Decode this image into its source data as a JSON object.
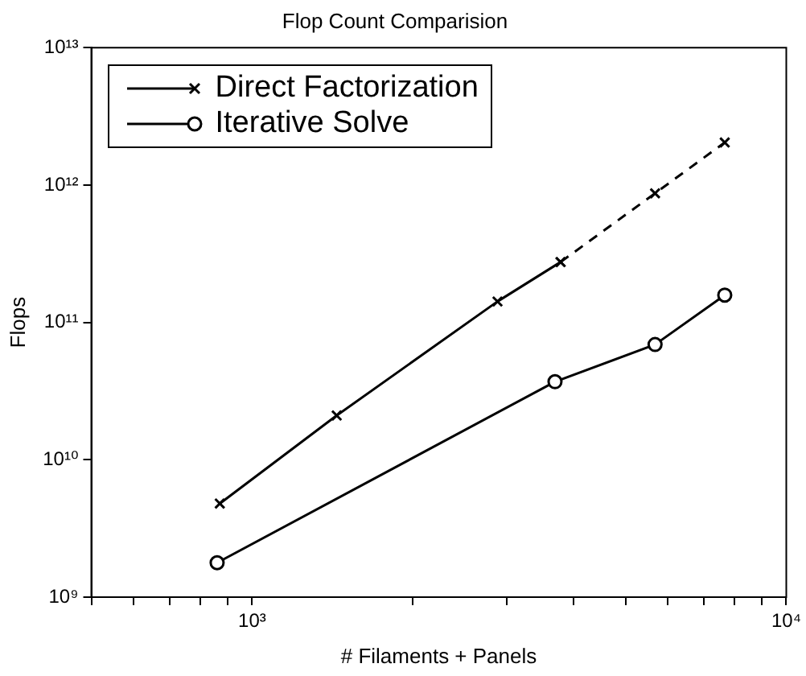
{
  "chart_data": {
    "type": "line",
    "title": "Flop Count Comparision",
    "xlabel": "# Filaments + Panels",
    "ylabel": "Flops",
    "log": "xy",
    "grid": false,
    "legend": "top left",
    "xlim": [
      500,
      10000
    ],
    "xticks": [
      {
        "value": 500,
        "label": null
      },
      {
        "value": 600,
        "label": null
      },
      {
        "value": 700,
        "label": null
      },
      {
        "value": 800,
        "label": null
      },
      {
        "value": 900,
        "label": null
      },
      {
        "value": 1000,
        "label": "10³"
      },
      {
        "value": 2000,
        "label": null
      },
      {
        "value": 3000,
        "label": null
      },
      {
        "value": 4000,
        "label": null
      },
      {
        "value": 5000,
        "label": null
      },
      {
        "value": 6000,
        "label": null
      },
      {
        "value": 7000,
        "label": null
      },
      {
        "value": 8000,
        "label": null
      },
      {
        "value": 9000,
        "label": null
      },
      {
        "value": 10000,
        "label": "10⁴"
      }
    ],
    "ylim": [
      1000000000.0,
      10000000000000.0
    ],
    "yticks": [
      {
        "value": 1000000000.0,
        "label": "10⁹"
      },
      {
        "value": 10000000000.0,
        "label": "10¹⁰"
      },
      {
        "value": 100000000000.0,
        "label": "10¹¹"
      },
      {
        "value": 1000000000000.0,
        "label": "10¹²"
      },
      {
        "value": 10000000000000.0,
        "label": "10¹³"
      }
    ],
    "series": [
      {
        "name": "Direct Factorization",
        "color": "#000000",
        "marker": "cross",
        "line_style": "solid",
        "x": [
          870,
          1440,
          2880,
          3780
        ],
        "values": [
          4800000000.0,
          21000000000.0,
          142000000000.0,
          275000000000.0
        ]
      },
      {
        "color": "#000000",
        "marker": "cross",
        "line_style": "dashed",
        "x": [
          3780,
          5680,
          7670
        ],
        "values": [
          275000000000.0,
          870000000000.0,
          2040000000000.0
        ]
      },
      {
        "name": "Iterative Solve",
        "color": "#000000",
        "marker": "circle",
        "line_style": "solid",
        "x": [
          860,
          3690,
          5680,
          7670
        ],
        "values": [
          1780000000.0,
          37000000000.0,
          69000000000.0,
          158000000000.0
        ]
      }
    ]
  }
}
